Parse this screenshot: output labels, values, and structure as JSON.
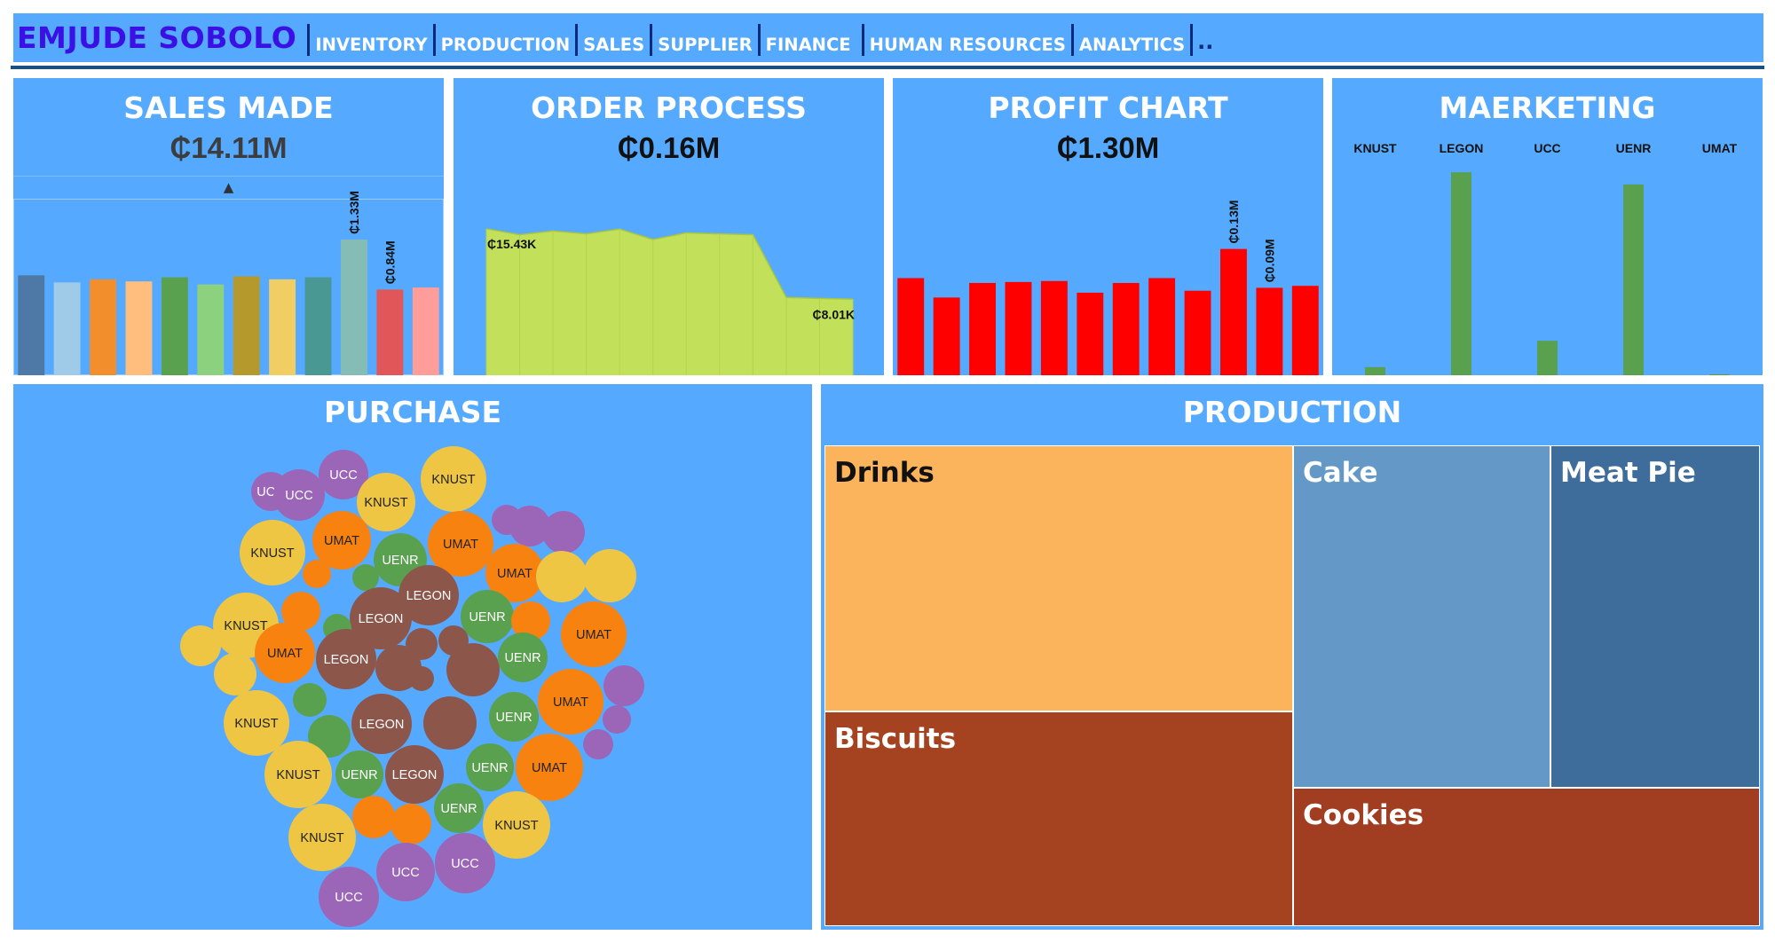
{
  "app": {
    "brand": "EMJUDE SOBOLO",
    "nav": [
      "INVENTORY",
      "PRODUCTION",
      "SALES",
      "SUPPLIER",
      "FINANCE",
      "HUMAN RESOURCES",
      "ANALYTICS"
    ],
    "nav_more": ".."
  },
  "colors": {
    "panel_bg": "#55aaff",
    "brand": "#3a10e5",
    "rule": "#1b4f7d"
  },
  "kpis": {
    "sales": {
      "title": "SALES MADE",
      "value": "₵14.11M",
      "indicator": "▲"
    },
    "order": {
      "title": "ORDER PROCESS",
      "value": "₵0.16M"
    },
    "profit": {
      "title": "PROFIT CHART",
      "value": "₵1.30M"
    },
    "marketing": {
      "title": "MAERKETING"
    }
  },
  "purchase": {
    "title": "PURCHASE"
  },
  "production": {
    "title": "PRODUCTION"
  },
  "chart_data": [
    {
      "type": "bar",
      "chart": "sales",
      "values": [
        0.98,
        0.91,
        0.94,
        0.92,
        0.96,
        0.89,
        0.97,
        0.94,
        0.96,
        1.33,
        0.84,
        0.86
      ],
      "colors": [
        "#4e79a7",
        "#a0cbe8",
        "#f28e2b",
        "#ffbe7d",
        "#59a14f",
        "#8cd17d",
        "#b6992d",
        "#f1ce63",
        "#499894",
        "#86bcb6",
        "#e15759",
        "#ff9d9a"
      ],
      "data_labels": [
        {
          "index": 9,
          "text": "₵1.33M"
        },
        {
          "index": 10,
          "text": "₵0.84M"
        }
      ],
      "ylim": [
        0,
        2.0
      ]
    },
    {
      "type": "area",
      "chart": "order",
      "values": [
        15.43,
        14.8,
        15.2,
        14.9,
        15.4,
        14.3,
        15.0,
        14.9,
        14.8,
        8.2,
        8.1,
        8.01
      ],
      "color": "#c3e05b",
      "data_labels": [
        {
          "index": 0,
          "text": "₵15.43K"
        },
        {
          "index": 11,
          "text": "₵8.01K"
        }
      ],
      "ylim": [
        0,
        21.5
      ]
    },
    {
      "type": "bar",
      "chart": "profit",
      "values": [
        0.1,
        0.08,
        0.095,
        0.096,
        0.097,
        0.085,
        0.095,
        0.1,
        0.087,
        0.13,
        0.09,
        0.092
      ],
      "color": "#ff0000",
      "data_labels": [
        {
          "index": 9,
          "text": "₵0.13M"
        },
        {
          "index": 10,
          "text": "₵0.09M"
        }
      ],
      "ylim": [
        0,
        0.21
      ]
    },
    {
      "type": "bar",
      "chart": "marketing",
      "categories": [
        "KNUST",
        "LEGON",
        "UCC",
        "UENR",
        "UMAT"
      ],
      "values": [
        4,
        100,
        17,
        94,
        0.5
      ],
      "color": "#59a14f",
      "ylim": [
        0,
        118
      ]
    },
    {
      "type": "bubble",
      "chart": "purchase",
      "colors": {
        "KNUST": "#eec643",
        "UMAT": "#f7820f",
        "UENR": "#59a14f",
        "LEGON": "#8c564b",
        "UCC": "#9b65b8"
      },
      "bubbles": [
        {
          "label": "UCC",
          "cat": "UCC"
        },
        {
          "label": "UCC",
          "cat": "UCC"
        },
        {
          "label": "KNUST",
          "cat": "KNUST"
        },
        {
          "label": "KNUST",
          "cat": "KNUST"
        },
        {
          "label": "UCC",
          "cat": "UCC"
        },
        {
          "label": "UMAT",
          "cat": "UMAT"
        },
        {
          "label": "KNUST",
          "cat": "KNUST"
        },
        {
          "label": "UENR",
          "cat": "UENR"
        },
        {
          "label": "UMAT",
          "cat": "UMAT"
        },
        {
          "label": "",
          "cat": "UCC"
        },
        {
          "label": "",
          "cat": "UCC"
        },
        {
          "label": "",
          "cat": "UCC"
        },
        {
          "label": "UMAT",
          "cat": "UMAT"
        },
        {
          "label": "",
          "cat": "KNUST"
        },
        {
          "label": "",
          "cat": "KNUST"
        },
        {
          "label": "",
          "cat": "UMAT"
        },
        {
          "label": "",
          "cat": "UENR"
        },
        {
          "label": "LEGON",
          "cat": "LEGON"
        },
        {
          "label": "LEGON",
          "cat": "LEGON"
        },
        {
          "label": "UENR",
          "cat": "UENR"
        },
        {
          "label": "KNUST",
          "cat": "KNUST"
        },
        {
          "label": "",
          "cat": "UMAT"
        },
        {
          "label": "",
          "cat": "UENR"
        },
        {
          "label": "",
          "cat": "UMAT"
        },
        {
          "label": "UMAT",
          "cat": "UMAT"
        },
        {
          "label": "",
          "cat": "KNUST"
        },
        {
          "label": "UMAT",
          "cat": "UMAT"
        },
        {
          "label": "LEGON",
          "cat": "LEGON"
        },
        {
          "label": "",
          "cat": "LEGON"
        },
        {
          "label": "",
          "cat": "LEGON"
        },
        {
          "label": "",
          "cat": "LEGON"
        },
        {
          "label": "",
          "cat": "LEGON"
        },
        {
          "label": "UENR",
          "cat": "UENR"
        },
        {
          "label": "",
          "cat": "KNUST"
        },
        {
          "label": "",
          "cat": "LEGON"
        },
        {
          "label": "UMAT",
          "cat": "UMAT"
        },
        {
          "label": "",
          "cat": "UCC"
        },
        {
          "label": "KNUST",
          "cat": "KNUST"
        },
        {
          "label": "",
          "cat": "UENR"
        },
        {
          "label": "",
          "cat": "UENR"
        },
        {
          "label": "LEGON",
          "cat": "LEGON"
        },
        {
          "label": "",
          "cat": "LEGON"
        },
        {
          "label": "UENR",
          "cat": "UENR"
        },
        {
          "label": "",
          "cat": "UCC"
        },
        {
          "label": "",
          "cat": "UCC"
        },
        {
          "label": "KNUST",
          "cat": "KNUST"
        },
        {
          "label": "UENR",
          "cat": "UENR"
        },
        {
          "label": "LEGON",
          "cat": "LEGON"
        },
        {
          "label": "UENR",
          "cat": "UENR"
        },
        {
          "label": "UMAT",
          "cat": "UMAT"
        },
        {
          "label": "UENR",
          "cat": "UENR"
        },
        {
          "label": "",
          "cat": "UMAT"
        },
        {
          "label": "",
          "cat": "UMAT"
        },
        {
          "label": "KNUST",
          "cat": "KNUST"
        },
        {
          "label": "KNUST",
          "cat": "KNUST"
        },
        {
          "label": "UCC",
          "cat": "UCC"
        },
        {
          "label": "UCC",
          "cat": "UCC"
        },
        {
          "label": "UCC",
          "cat": "UCC"
        }
      ]
    },
    {
      "type": "treemap",
      "chart": "production",
      "items": [
        {
          "name": "Drinks",
          "color": "#fbb35c",
          "label_color": "#111111"
        },
        {
          "name": "Biscuits",
          "color": "#a54321",
          "label_color": "#ffffff"
        },
        {
          "name": "Cake",
          "color": "#6498c6",
          "label_color": "#ffffff"
        },
        {
          "name": "Meat Pie",
          "color": "#3f6d9b",
          "label_color": "#ffffff"
        },
        {
          "name": "Cookies",
          "color": "#a13d20",
          "label_color": "#ffffff"
        }
      ]
    }
  ]
}
